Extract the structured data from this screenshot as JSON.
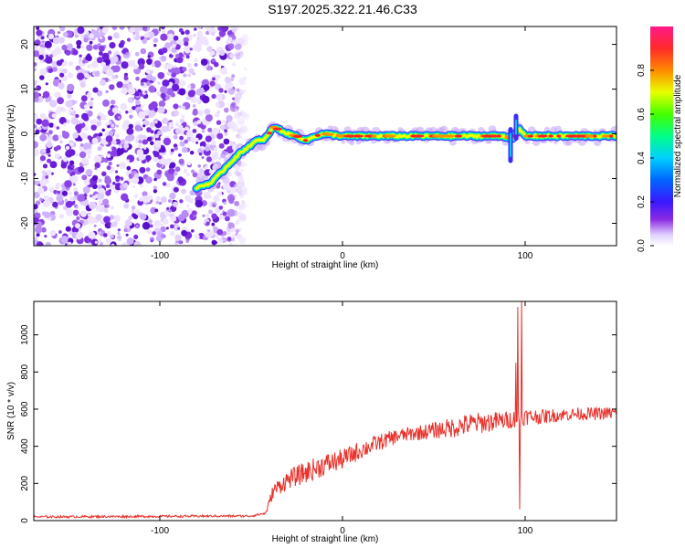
{
  "title": "S197.2025.322.21.46.C33",
  "colors": {
    "snr_line": "#e8302a",
    "background": "#ffffff",
    "axis": "#000000"
  },
  "chart_data": [
    {
      "type": "heatmap",
      "xlabel": "Height of straight line (km)",
      "ylabel": "Frequency (Hz)",
      "xlim": [
        -169,
        150
      ],
      "ylim": [
        -25,
        24
      ],
      "xticks": [
        -100,
        0,
        100
      ],
      "xtick_labels": [
        "-100",
        "0",
        "100"
      ],
      "yticks": [
        -20,
        -10,
        0,
        10,
        20
      ],
      "ytick_labels": [
        "-20",
        "-10",
        "0",
        "10",
        "20"
      ],
      "noise_region_x": [
        -169,
        -53
      ],
      "ridge": {
        "x": [
          -80,
          -72,
          -65,
          -58,
          -52,
          -47,
          -44,
          -41,
          -38,
          -35,
          -30,
          -25,
          -20,
          -15,
          -10,
          0,
          20,
          40,
          60,
          80,
          88,
          93,
          97,
          100,
          110,
          120,
          130,
          140,
          150
        ],
        "freq": [
          -12,
          -11,
          -8,
          -5,
          -3,
          -1.5,
          -1.5,
          -0.5,
          1.5,
          1,
          0,
          -0.5,
          -1.5,
          -0.5,
          0,
          -0.5,
          -0.5,
          -0.5,
          -0.5,
          -0.5,
          -0.5,
          -1,
          1,
          -0.5,
          -0.5,
          -0.5,
          -0.5,
          -0.5,
          -0.5
        ]
      },
      "spike_artifacts": [
        {
          "x": 92,
          "freq_range": [
            -6,
            1
          ]
        },
        {
          "x": 95,
          "freq_range": [
            -1,
            4
          ]
        }
      ]
    },
    {
      "type": "colorbar",
      "label": "Normalized spectral amplitude",
      "range": [
        0.0,
        1.0
      ],
      "ticks": [
        0.0,
        0.2,
        0.4,
        0.6,
        0.8
      ],
      "tick_labels": [
        "0.0",
        "0.2",
        "0.4",
        "0.6",
        "0.8"
      ]
    },
    {
      "type": "line",
      "xlabel": "Height of straight line (km)",
      "ylabel": "SNR (10 * v/v)",
      "xlim": [
        -169,
        150
      ],
      "ylim": [
        0,
        1180
      ],
      "xticks": [
        -100,
        0,
        100
      ],
      "xtick_labels": [
        "-100",
        "0",
        "100"
      ],
      "yticks": [
        0,
        200,
        400,
        600,
        800,
        1000
      ],
      "ytick_labels": [
        "0",
        "200",
        "400",
        "600",
        "800",
        "1000"
      ],
      "series": [
        {
          "name": "SNR",
          "trend_x": [
            -169,
            -50,
            -42,
            -38,
            -30,
            -20,
            -10,
            0,
            10,
            20,
            30,
            40,
            50,
            60,
            70,
            80,
            90,
            100,
            110,
            120,
            130,
            140,
            150
          ],
          "trend_y": [
            20,
            25,
            40,
            160,
            220,
            260,
            300,
            330,
            380,
            420,
            455,
            470,
            485,
            500,
            520,
            530,
            540,
            560,
            560,
            570,
            575,
            575,
            580
          ],
          "noise_amp": [
            6,
            6,
            8,
            40,
            50,
            60,
            60,
            55,
            50,
            45,
            40,
            40,
            45,
            55,
            60,
            55,
            50,
            45,
            40,
            35,
            35,
            35,
            35
          ],
          "spikes": [
            {
              "x": 96,
              "y": 1150
            },
            {
              "x": 97,
              "y": 60
            },
            {
              "x": 98,
              "y": 1180
            },
            {
              "x": 95,
              "y": 850
            }
          ]
        }
      ]
    }
  ]
}
